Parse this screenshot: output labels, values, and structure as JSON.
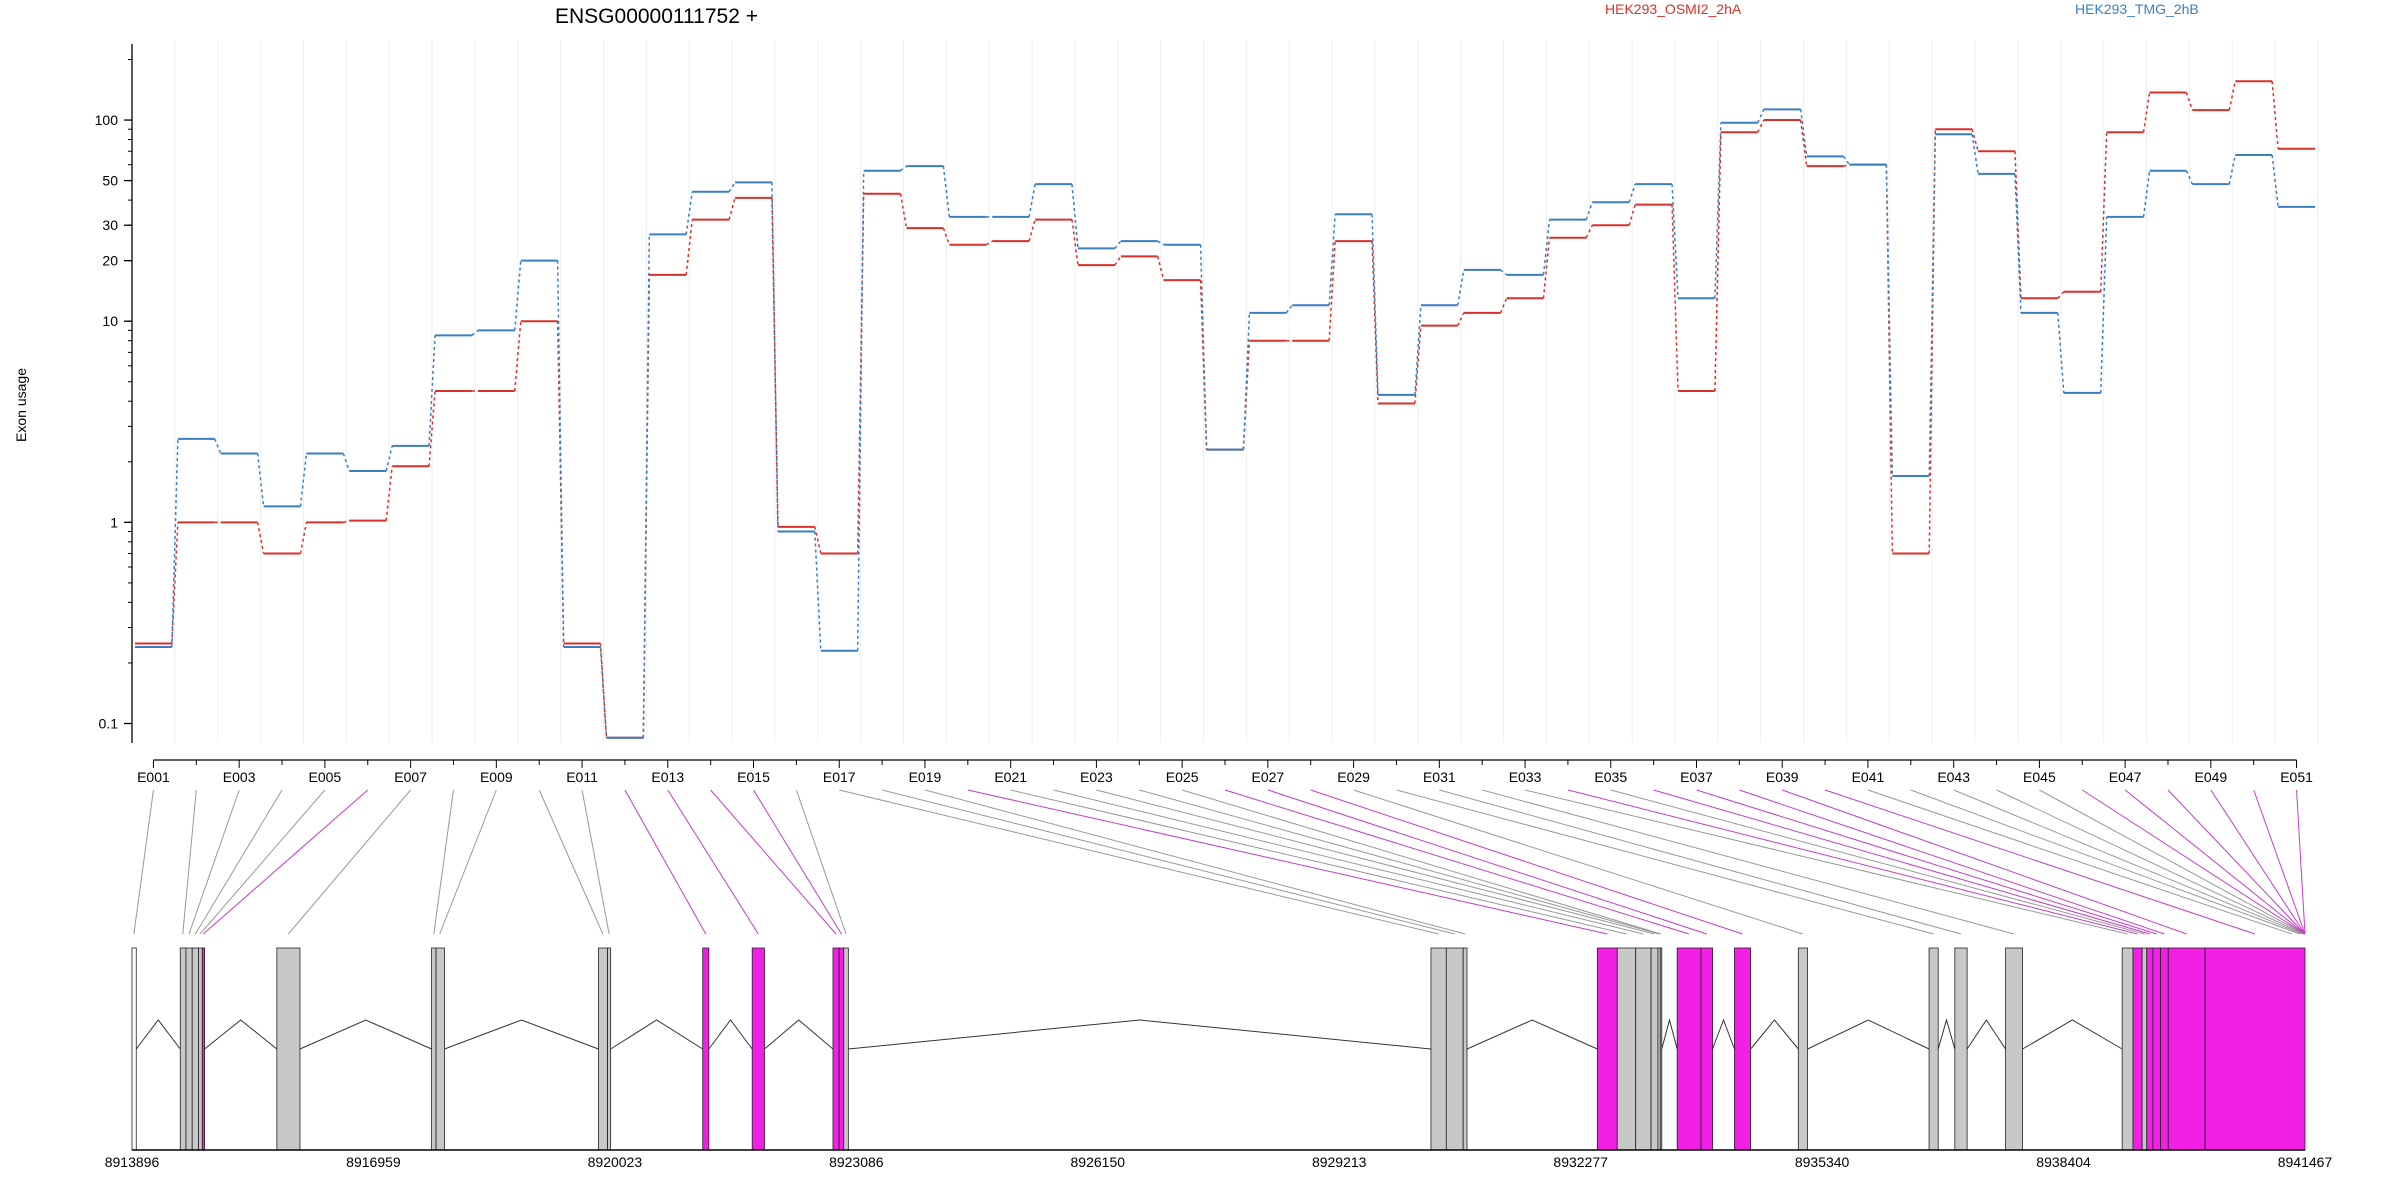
{
  "chart_data": {
    "type": "line",
    "gene_id": "ENSG00000111752 +",
    "ylabel": "Exon usage",
    "y_scale": "log",
    "y_ticks": [
      0.1,
      1,
      10,
      20,
      30,
      50,
      100
    ],
    "y_tick_labels": [
      "0.1",
      "1",
      "10",
      "20",
      "30",
      "50",
      "100"
    ],
    "ylim": [
      0.08,
      250
    ],
    "exon_labels": [
      "E001",
      "E003",
      "E005",
      "E007",
      "E009",
      "E011",
      "E013",
      "E015",
      "E017",
      "E019",
      "E021",
      "E023",
      "E025",
      "E027",
      "E029",
      "E031",
      "E033",
      "E035",
      "E037",
      "E039",
      "E041",
      "E043",
      "E045",
      "E047",
      "E049",
      "E051"
    ],
    "exons": [
      "E001",
      "E002",
      "E003",
      "E004",
      "E005",
      "E006",
      "E007",
      "E008",
      "E009",
      "E010",
      "E011",
      "E012",
      "E013",
      "E014",
      "E015",
      "E016",
      "E017",
      "E018",
      "E019",
      "E020",
      "E021",
      "E022",
      "E023",
      "E024",
      "E025",
      "E026",
      "E027",
      "E028",
      "E029",
      "E030",
      "E031",
      "E032",
      "E033",
      "E034",
      "E035",
      "E036",
      "E037",
      "E038",
      "E039",
      "E040",
      "E041",
      "E042",
      "E043",
      "E044",
      "E045",
      "E046",
      "E047",
      "E048",
      "E049",
      "E050",
      "E051"
    ],
    "series": [
      {
        "name": "HEK293_OSMI2_2hA",
        "color": "#d7312b",
        "values": [
          0.25,
          1,
          1,
          0.7,
          1,
          1.02,
          1.9,
          4.5,
          4.5,
          10,
          0.25,
          0.085,
          17,
          32,
          41,
          0.95,
          0.7,
          43,
          29,
          24,
          25,
          32,
          19,
          21,
          16,
          2.3,
          8,
          8,
          25,
          3.9,
          9.5,
          11,
          13,
          26,
          30,
          38,
          4.5,
          87,
          100,
          59,
          60,
          0.7,
          90,
          70,
          13,
          14,
          87,
          137,
          112,
          156,
          72
        ]
      },
      {
        "name": "HEK293_TMG_2hB",
        "color": "#3a7fc1",
        "values": [
          0.24,
          2.6,
          2.2,
          1.2,
          2.2,
          1.8,
          2.4,
          8.5,
          9,
          20,
          0.24,
          0.085,
          27,
          44,
          49,
          0.9,
          0.23,
          56,
          59,
          33,
          33,
          48,
          23,
          25,
          24,
          2.3,
          11,
          12,
          34,
          4.3,
          12,
          18,
          17,
          32,
          39,
          48,
          13,
          97,
          113,
          66,
          60,
          1.7,
          85,
          54,
          11,
          4.4,
          33,
          56,
          48,
          67,
          37
        ]
      }
    ],
    "genomic_axis_labels": [
      "8913896",
      "8916959",
      "8920023",
      "8923086",
      "8926150",
      "8929213",
      "8932277",
      "8935340",
      "8938404",
      "8941467"
    ],
    "genomic_start": 8913896,
    "genomic_end": 8941467,
    "gene_model": {
      "exon_blocks": [
        {
          "start": 8913896,
          "end": 8913950,
          "sig": false,
          "fill": "white"
        },
        {
          "start": 8914508,
          "end": 8914581,
          "sig": false
        },
        {
          "start": 8914581,
          "end": 8914660,
          "sig": false
        },
        {
          "start": 8914660,
          "end": 8914740,
          "sig": false
        },
        {
          "start": 8914740,
          "end": 8914788,
          "sig": false
        },
        {
          "start": 8914788,
          "end": 8914817,
          "sig": true
        },
        {
          "start": 8915734,
          "end": 8916027,
          "sig": false
        },
        {
          "start": 8917697,
          "end": 8917754,
          "sig": false
        },
        {
          "start": 8917754,
          "end": 8917861,
          "sig": false
        },
        {
          "start": 8919814,
          "end": 8919930,
          "sig": false
        },
        {
          "start": 8919930,
          "end": 8919969,
          "sig": false
        },
        {
          "start": 8921137,
          "end": 8921215,
          "sig": true
        },
        {
          "start": 8921765,
          "end": 8921921,
          "sig": true
        },
        {
          "start": 8922790,
          "end": 8922868,
          "sig": true
        },
        {
          "start": 8922868,
          "end": 8922927,
          "sig": true
        },
        {
          "start": 8922927,
          "end": 8922985,
          "sig": false
        },
        {
          "start": 8930377,
          "end": 8930572,
          "sig": false
        },
        {
          "start": 8930572,
          "end": 8930786,
          "sig": false
        },
        {
          "start": 8930786,
          "end": 8930835,
          "sig": false
        },
        {
          "start": 8932488,
          "end": 8932741,
          "sig": true
        },
        {
          "start": 8932741,
          "end": 8932975,
          "sig": false
        },
        {
          "start": 8932975,
          "end": 8933170,
          "sig": false
        },
        {
          "start": 8933170,
          "end": 8933257,
          "sig": false
        },
        {
          "start": 8933257,
          "end": 8933287,
          "sig": false
        },
        {
          "start": 8933287,
          "end": 8933306,
          "sig": false
        },
        {
          "start": 8933501,
          "end": 8933804,
          "sig": true
        },
        {
          "start": 8933804,
          "end": 8933950,
          "sig": true
        },
        {
          "start": 8934228,
          "end": 8934433,
          "sig": true
        },
        {
          "start": 8935038,
          "end": 8935155,
          "sig": false
        },
        {
          "start": 8936697,
          "end": 8936813,
          "sig": false
        },
        {
          "start": 8937024,
          "end": 8937180,
          "sig": false
        },
        {
          "start": 8937668,
          "end": 8937883,
          "sig": false
        },
        {
          "start": 8939147,
          "end": 8939284,
          "sig": false
        },
        {
          "start": 8939284,
          "end": 8939401,
          "sig": true
        },
        {
          "start": 8939401,
          "end": 8939459,
          "sig": false
        },
        {
          "start": 8939459,
          "end": 8939537,
          "sig": true
        },
        {
          "start": 8939537,
          "end": 8939634,
          "sig": true
        },
        {
          "start": 8939634,
          "end": 8939732,
          "sig": true
        },
        {
          "start": 8939732,
          "end": 8940200,
          "sig": true
        },
        {
          "start": 8940200,
          "end": 8941467,
          "sig": true
        }
      ],
      "introns": [
        [
          8913950,
          8914508
        ],
        [
          8914817,
          8915734
        ],
        [
          8916027,
          8917697
        ],
        [
          8917861,
          8919814
        ],
        [
          8919969,
          8921137
        ],
        [
          8921215,
          8921765
        ],
        [
          8921921,
          8922790
        ],
        [
          8922985,
          8930377
        ],
        [
          8930835,
          8932488
        ],
        [
          8933306,
          8933501
        ],
        [
          8933950,
          8934228
        ],
        [
          8934433,
          8935038
        ],
        [
          8935155,
          8936697
        ],
        [
          8936813,
          8937024
        ],
        [
          8937180,
          8937668
        ],
        [
          8937883,
          8939147
        ]
      ],
      "exon_link_targets": [
        8913920,
        8914540,
        8914620,
        8914700,
        8914760,
        8914800,
        8915880,
        8917725,
        8917800,
        8919870,
        8919950,
        8921176,
        8921843,
        8922829,
        8922897,
        8922956,
        8930475,
        8930680,
        8930810,
        8932615,
        8932858,
        8933072,
        8933214,
        8933272,
        8933296,
        8933652,
        8933877,
        8934330,
        8935096,
        8936755,
        8937102,
        8937775,
        8939215,
        8939340,
        8939430,
        8939498,
        8939585,
        8939683,
        8939966,
        8940833,
        8941300,
        8941400,
        8941430,
        8941450,
        8941460,
        8941463,
        8941465,
        8941466,
        8941466,
        8941467,
        8941467
      ],
      "exon_sig": [
        false,
        false,
        false,
        false,
        false,
        true,
        false,
        false,
        false,
        false,
        false,
        true,
        true,
        true,
        true,
        false,
        false,
        false,
        false,
        true,
        false,
        false,
        false,
        false,
        false,
        true,
        true,
        true,
        false,
        false,
        false,
        false,
        false,
        true,
        false,
        true,
        true,
        true,
        true,
        true,
        false,
        false,
        false,
        false,
        false,
        true,
        true,
        true,
        true,
        true,
        true
      ]
    }
  }
}
